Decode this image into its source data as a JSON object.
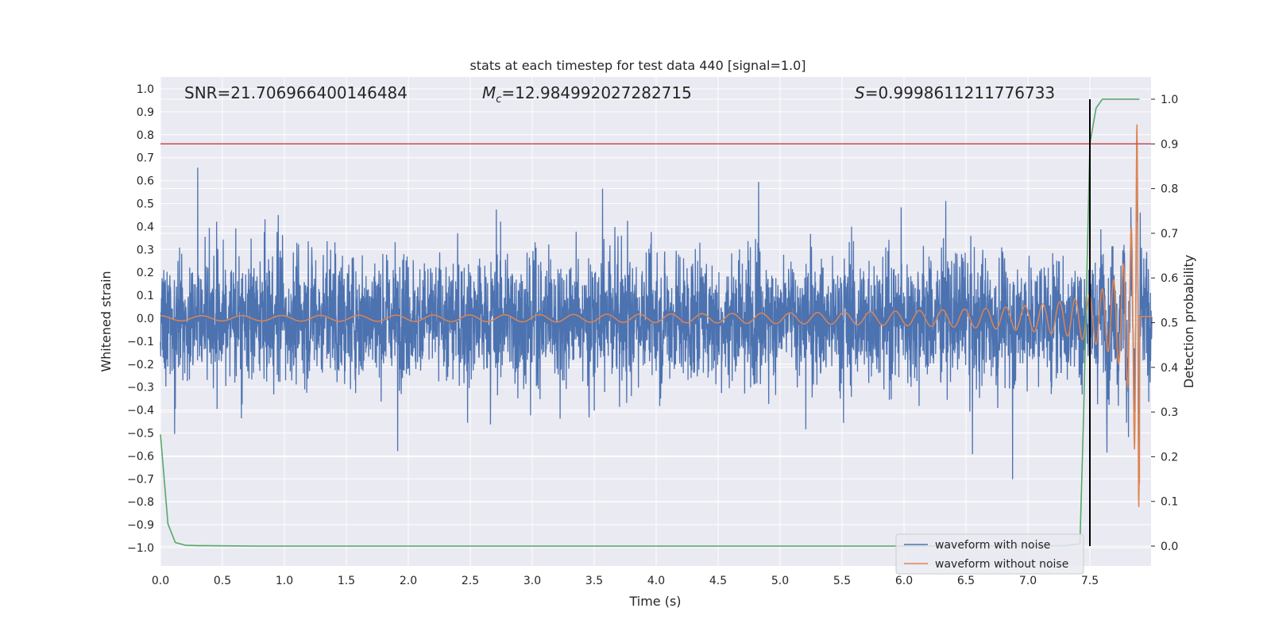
{
  "chart_data": {
    "type": "line",
    "title": "stats at each timestep for test data 440 [signal=1.0]",
    "xlabel": "Time (s)",
    "ylabel": "Whitened strain",
    "y2label": "Detection probability",
    "xlim": [
      0.0,
      8.0
    ],
    "ylim": [
      -1.05,
      1.05
    ],
    "y2lim": [
      -0.05,
      1.05
    ],
    "xticks": [
      "0.0",
      "0.5",
      "1.0",
      "1.5",
      "2.0",
      "2.5",
      "3.0",
      "3.5",
      "4.0",
      "4.5",
      "5.0",
      "5.5",
      "6.0",
      "6.5",
      "7.0",
      "7.5"
    ],
    "yticks": [
      "1.0",
      "0.9",
      "0.8",
      "0.7",
      "0.6",
      "0.5",
      "0.4",
      "0.3",
      "0.2",
      "0.1",
      "0.0",
      "−0.1",
      "−0.2",
      "−0.3",
      "−0.4",
      "−0.5",
      "−0.6",
      "−0.7",
      "−0.8",
      "−0.9",
      "−1.0"
    ],
    "y2ticks": [
      "1.0",
      "0.9",
      "0.8",
      "0.7",
      "0.6",
      "0.5",
      "0.4",
      "0.3",
      "0.2",
      "0.1",
      "0.0"
    ],
    "annotations": {
      "snr": "SNR=21.706966400146484",
      "mc_symbol": "M",
      "mc_sub": "c",
      "mc_value": "=12.984992027282715",
      "s_symbol": "S",
      "s_value": "=0.9998611211776733"
    },
    "threshold_line": {
      "y2": 0.9,
      "color": "#c44e52"
    },
    "marker_line": {
      "x": 7.5,
      "color": "#000000"
    },
    "series": [
      {
        "name": "waveform with noise",
        "color": "#4c72b0",
        "axis": "left",
        "noise_amplitude": 0.35,
        "peak_at": 7.89
      },
      {
        "name": "waveform without noise",
        "color": "#dd8452",
        "axis": "left",
        "chirp": {
          "f_start": 3.0,
          "merger": 7.9,
          "amp_start": 0.02,
          "amp_peak": 0.85
        }
      },
      {
        "name": "detection probability",
        "color": "#55a868",
        "axis": "right",
        "x": [
          0.0,
          0.06,
          0.12,
          0.2,
          0.3,
          0.8,
          2.0,
          4.0,
          6.0,
          7.0,
          7.3,
          7.42,
          7.45,
          7.5,
          7.55,
          7.6,
          7.9
        ],
        "y": [
          0.25,
          0.05,
          0.008,
          0.002,
          0.001,
          0.0,
          0.0,
          0.0,
          0.0,
          0.0,
          0.001,
          0.005,
          0.3,
          0.9,
          0.98,
          1.0,
          1.0
        ]
      }
    ],
    "legend": {
      "position": "lower-right",
      "entries": [
        "waveform with noise",
        "waveform without noise"
      ]
    }
  }
}
